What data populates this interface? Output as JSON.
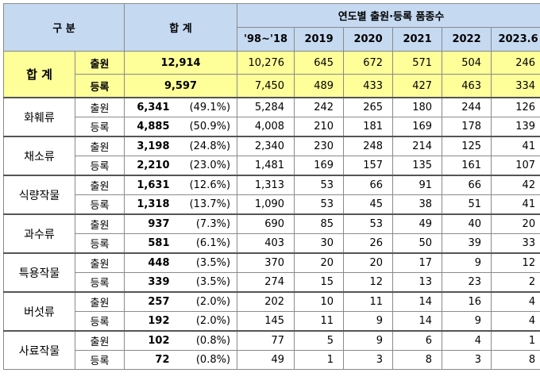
{
  "header": {
    "category": "구 분",
    "total": "합 계",
    "years_title": "연도별 출원·등록 품종수",
    "years": [
      "'98~'18",
      "2019",
      "2020",
      "2021",
      "2022",
      "2023.6"
    ]
  },
  "total": {
    "label": "합 계",
    "rows": [
      {
        "type": "출원",
        "total": "12,914",
        "years": [
          "10,276",
          "645",
          "672",
          "571",
          "504",
          "246"
        ]
      },
      {
        "type": "등록",
        "total": "9,597",
        "years": [
          "7,450",
          "489",
          "433",
          "427",
          "463",
          "334"
        ]
      }
    ]
  },
  "groups": [
    {
      "name": "화훼류",
      "rows": [
        {
          "type": "출원",
          "value": "6,341",
          "pct": "(49.1%)",
          "years": [
            "5,284",
            "242",
            "265",
            "180",
            "244",
            "126"
          ]
        },
        {
          "type": "등록",
          "value": "4,885",
          "pct": "(50.9%)",
          "years": [
            "4,008",
            "210",
            "181",
            "169",
            "178",
            "139"
          ]
        }
      ]
    },
    {
      "name": "채소류",
      "rows": [
        {
          "type": "출원",
          "value": "3,198",
          "pct": "(24.8%)",
          "years": [
            "2,340",
            "230",
            "248",
            "214",
            "125",
            "41"
          ]
        },
        {
          "type": "등록",
          "value": "2,210",
          "pct": "(23.0%)",
          "years": [
            "1,481",
            "169",
            "157",
            "135",
            "161",
            "107"
          ]
        }
      ]
    },
    {
      "name": "식량작물",
      "rows": [
        {
          "type": "출원",
          "value": "1,631",
          "pct": "(12.6%)",
          "years": [
            "1,313",
            "53",
            "66",
            "91",
            "66",
            "42"
          ]
        },
        {
          "type": "등록",
          "value": "1,318",
          "pct": "(13.7%)",
          "years": [
            "1,090",
            "53",
            "45",
            "38",
            "51",
            "41"
          ]
        }
      ]
    },
    {
      "name": "과수류",
      "rows": [
        {
          "type": "출원",
          "value": "937",
          "pct": "(7.3%)",
          "years": [
            "690",
            "85",
            "53",
            "49",
            "40",
            "20"
          ]
        },
        {
          "type": "등록",
          "value": "581",
          "pct": "(6.1%)",
          "years": [
            "403",
            "30",
            "26",
            "50",
            "39",
            "33"
          ]
        }
      ]
    },
    {
      "name": "특용작물",
      "rows": [
        {
          "type": "출원",
          "value": "448",
          "pct": "(3.5%)",
          "years": [
            "370",
            "20",
            "20",
            "17",
            "9",
            "12"
          ]
        },
        {
          "type": "등록",
          "value": "339",
          "pct": "(3.5%)",
          "years": [
            "274",
            "15",
            "12",
            "13",
            "23",
            "2"
          ]
        }
      ]
    },
    {
      "name": "버섯류",
      "rows": [
        {
          "type": "출원",
          "value": "257",
          "pct": "(2.0%)",
          "years": [
            "202",
            "10",
            "11",
            "14",
            "16",
            "4"
          ]
        },
        {
          "type": "등록",
          "value": "192",
          "pct": "(2.0%)",
          "years": [
            "145",
            "11",
            "9",
            "14",
            "9",
            "4"
          ]
        }
      ]
    },
    {
      "name": "사료작물",
      "rows": [
        {
          "type": "출원",
          "value": "102",
          "pct": "(0.8%)",
          "years": [
            "77",
            "5",
            "9",
            "6",
            "4",
            "1"
          ]
        },
        {
          "type": "등록",
          "value": "72",
          "pct": "(0.8%)",
          "years": [
            "49",
            "1",
            "3",
            "8",
            "3",
            "8"
          ]
        }
      ]
    }
  ]
}
